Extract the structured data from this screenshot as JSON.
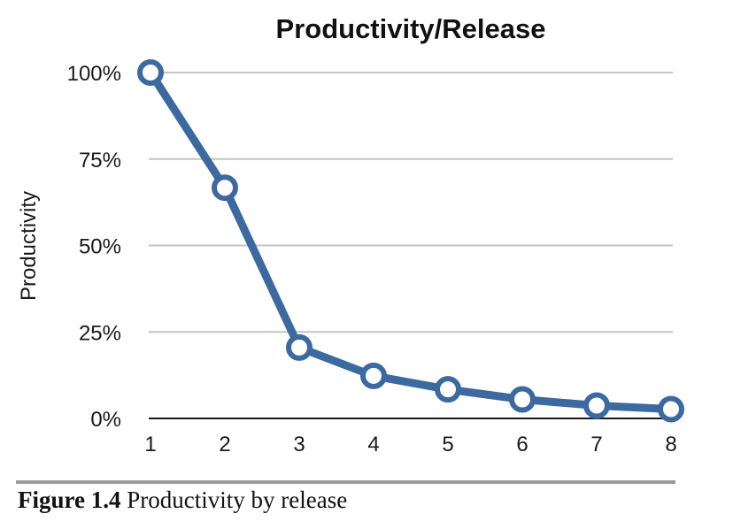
{
  "chart_data": {
    "type": "line",
    "title": "Productivity/Release",
    "xlabel": "",
    "ylabel": "Productivity",
    "x": [
      1,
      2,
      3,
      4,
      5,
      6,
      7,
      8
    ],
    "x_tick_labels": [
      "1",
      "2",
      "3",
      "4",
      "5",
      "6",
      "7",
      "8"
    ],
    "y_tick_labels": [
      "100%",
      "75%",
      "50%",
      "25%",
      "0%"
    ],
    "y_ticks": [
      100,
      75,
      50,
      25,
      0
    ],
    "ylim": [
      0,
      100
    ],
    "xlim": [
      1,
      8
    ],
    "grid": true,
    "series": [
      {
        "values": [
          100,
          66.7,
          20.5,
          12.3,
          8.4,
          5.5,
          3.7,
          2.7
        ],
        "color": "#3c6aa0",
        "marker": "hollow-circle"
      }
    ]
  },
  "caption": {
    "figure_number": "Figure 1.4",
    "text": "Productivity by release"
  }
}
